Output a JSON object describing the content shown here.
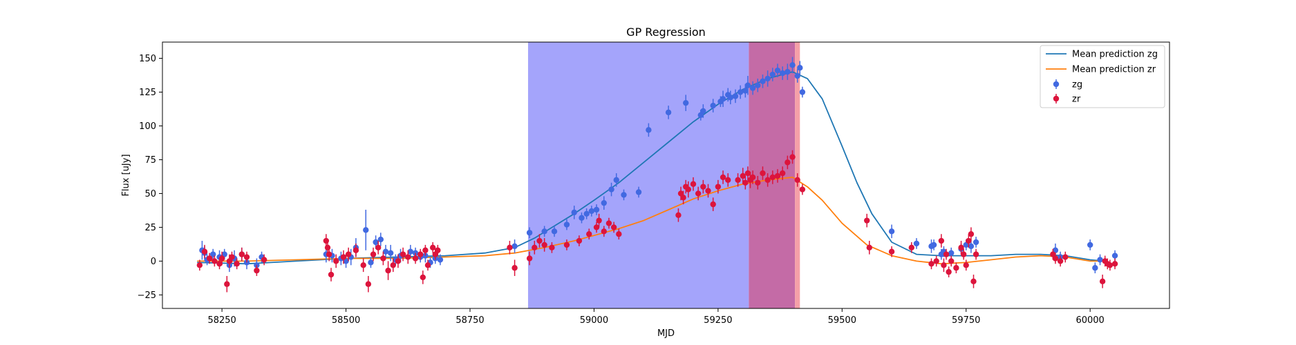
{
  "chart_data": {
    "type": "scatter",
    "title": "GP Regression",
    "xlabel": "MJD",
    "ylabel": "Flux [uJy]",
    "xlim": [
      58130,
      60160
    ],
    "ylim": [
      -35,
      162
    ],
    "x_ticks": [
      58250,
      58500,
      58750,
      59000,
      59250,
      59500,
      59750,
      60000
    ],
    "y_ticks": [
      -25,
      0,
      25,
      50,
      75,
      100,
      125,
      150
    ],
    "grid": false,
    "legend_position": "top-right",
    "shaded_regions": [
      {
        "x_start": 58867,
        "x_end": 59312,
        "color": "#a4a4fb"
      },
      {
        "x_start": 59312,
        "x_end": 59405,
        "color": "#c46ba6"
      },
      {
        "x_start": 59405,
        "x_end": 59415,
        "color": "#f5a0a8"
      }
    ],
    "series": [
      {
        "name": "Mean prediction zg",
        "kind": "line",
        "color": "#1f77b4",
        "x": [
          58200,
          58300,
          58400,
          58500,
          58600,
          58700,
          58780,
          58840,
          58880,
          58920,
          58960,
          59000,
          59050,
          59100,
          59150,
          59200,
          59250,
          59300,
          59350,
          59400,
          59430,
          59460,
          59500,
          59530,
          59560,
          59600,
          59650,
          59700,
          59750,
          59800,
          59850,
          59900,
          59950,
          60000,
          60030
        ],
        "y": [
          -1,
          -2,
          0,
          2,
          3,
          4,
          6,
          10,
          17,
          26,
          35,
          45,
          58,
          73,
          88,
          103,
          116,
          127,
          135,
          140,
          135,
          120,
          85,
          58,
          35,
          14,
          5,
          4,
          4,
          4,
          5,
          5,
          4,
          1,
          0
        ]
      },
      {
        "name": "Mean prediction zr",
        "kind": "line",
        "color": "#ff7f0e",
        "x": [
          58200,
          58300,
          58400,
          58500,
          58600,
          58700,
          58780,
          58840,
          58900,
          58960,
          59000,
          59050,
          59100,
          59150,
          59200,
          59250,
          59300,
          59350,
          59400,
          59430,
          59460,
          59500,
          59550,
          59600,
          59650,
          59700,
          59750,
          59800,
          59850,
          59900,
          59950,
          60000,
          60030
        ],
        "y": [
          0,
          0,
          1,
          2,
          2,
          3,
          4,
          6,
          10,
          15,
          19,
          24,
          30,
          38,
          46,
          52,
          57,
          60,
          62,
          55,
          45,
          28,
          12,
          4,
          0,
          -2,
          -1,
          1,
          3,
          4,
          3,
          0,
          0
        ]
      },
      {
        "name": "zg",
        "kind": "errorbar",
        "color": "#4169e1",
        "x": [
          58210,
          58215,
          58220,
          58232,
          58245,
          58255,
          58265,
          58275,
          58290,
          58300,
          58320,
          58330,
          58460,
          58472,
          58490,
          58500,
          58510,
          58520,
          58540,
          58550,
          58560,
          58570,
          58580,
          58590,
          58600,
          58610,
          58630,
          58640,
          58650,
          58660,
          58670,
          58680,
          58690,
          58840,
          58870,
          58900,
          58920,
          58945,
          58960,
          58975,
          58985,
          58995,
          59005,
          59020,
          59035,
          59045,
          59060,
          59090,
          59110,
          59150,
          59185,
          59215,
          59220,
          59240,
          59255,
          59260,
          59270,
          59275,
          59285,
          59295,
          59305,
          59310,
          59320,
          59330,
          59340,
          59350,
          59360,
          59370,
          59380,
          59390,
          59400,
          59410,
          59415,
          59420,
          59600,
          59650,
          59680,
          59685,
          59700,
          59705,
          59720,
          59740,
          59750,
          59760,
          59770,
          59930,
          59940,
          60000,
          60010,
          60020,
          60050
        ],
        "y": [
          8,
          6,
          1,
          5,
          3,
          5,
          -3,
          2,
          5,
          -1,
          -3,
          3,
          5,
          4,
          2,
          0,
          3,
          10,
          23,
          -1,
          14,
          16,
          7,
          6,
          1,
          4,
          7,
          6,
          3,
          4,
          -1,
          2,
          1,
          11,
          21,
          22,
          22,
          27,
          36,
          32,
          35,
          37,
          38,
          43,
          53,
          60,
          49,
          51,
          97,
          110,
          117,
          108,
          111,
          115,
          118,
          120,
          123,
          121,
          122,
          125,
          126,
          130,
          128,
          130,
          133,
          135,
          138,
          141,
          139,
          140,
          145,
          137,
          143,
          125,
          22,
          13,
          11,
          12,
          5,
          7,
          6,
          9,
          12,
          11,
          14,
          8,
          3,
          12,
          -5,
          1,
          4
        ],
        "yerr": [
          7,
          5,
          4,
          4,
          5,
          4,
          5,
          6,
          5,
          5,
          5,
          4,
          6,
          5,
          5,
          5,
          6,
          7,
          15,
          4,
          5,
          5,
          5,
          6,
          4,
          5,
          5,
          4,
          4,
          5,
          4,
          4,
          4,
          5,
          4,
          4,
          4,
          4,
          5,
          4,
          4,
          4,
          4,
          5,
          5,
          5,
          4,
          4,
          5,
          5,
          6,
          4,
          5,
          5,
          4,
          6,
          5,
          5,
          5,
          5,
          5,
          7,
          5,
          5,
          5,
          6,
          5,
          5,
          5,
          6,
          6,
          5,
          5,
          4,
          5,
          4,
          5,
          4,
          4,
          4,
          4,
          4,
          4,
          5,
          4,
          5,
          4,
          4,
          4,
          4,
          4
        ]
      },
      {
        "name": "zr",
        "kind": "errorbar",
        "color": "#dc143c",
        "x": [
          58205,
          58215,
          58225,
          58235,
          58245,
          58250,
          58260,
          58265,
          58270,
          58280,
          58290,
          58300,
          58320,
          58335,
          58460,
          58463,
          58466,
          58470,
          58480,
          58495,
          58505,
          58520,
          58535,
          58545,
          58555,
          58565,
          58575,
          58585,
          58595,
          58605,
          58615,
          58625,
          58640,
          58650,
          58655,
          58660,
          58665,
          58675,
          58680,
          58685,
          58830,
          58840,
          58870,
          58880,
          58890,
          58900,
          58915,
          58945,
          58970,
          58990,
          59005,
          59010,
          59020,
          59030,
          59040,
          59050,
          59170,
          59175,
          59180,
          59185,
          59190,
          59200,
          59210,
          59220,
          59230,
          59240,
          59250,
          59260,
          59270,
          59290,
          59300,
          59305,
          59310,
          59315,
          59320,
          59330,
          59340,
          59350,
          59360,
          59370,
          59380,
          59390,
          59400,
          59410,
          59420,
          59550,
          59555,
          59600,
          59640,
          59680,
          59690,
          59700,
          59705,
          59710,
          59715,
          59720,
          59730,
          59740,
          59745,
          59750,
          59755,
          59760,
          59765,
          59770,
          59925,
          59930,
          59940,
          59950,
          60025,
          60030,
          60035,
          60040,
          60050
        ],
        "y": [
          -3,
          7,
          2,
          0,
          -2,
          2,
          -17,
          0,
          3,
          -2,
          5,
          3,
          -7,
          1,
          15,
          10,
          5,
          -10,
          0,
          3,
          5,
          8,
          -3,
          -17,
          5,
          10,
          2,
          -7,
          -3,
          0,
          5,
          3,
          2,
          5,
          -12,
          8,
          -3,
          10,
          5,
          8,
          10,
          -5,
          2,
          10,
          15,
          12,
          10,
          12,
          15,
          20,
          25,
          30,
          22,
          28,
          25,
          20,
          34,
          50,
          47,
          55,
          53,
          57,
          50,
          55,
          52,
          42,
          55,
          62,
          60,
          60,
          63,
          58,
          65,
          60,
          62,
          58,
          65,
          60,
          62,
          63,
          65,
          73,
          77,
          60,
          53,
          30,
          10,
          7,
          10,
          -2,
          0,
          15,
          -3,
          5,
          -8,
          0,
          -5,
          10,
          5,
          -3,
          15,
          20,
          -15,
          5,
          5,
          2,
          0,
          3,
          -15,
          0,
          -2,
          -3,
          -2
        ],
        "yerr": [
          4,
          5,
          4,
          4,
          4,
          5,
          6,
          5,
          4,
          4,
          5,
          4,
          4,
          4,
          5,
          5,
          5,
          5,
          5,
          5,
          5,
          5,
          5,
          6,
          5,
          5,
          5,
          7,
          5,
          5,
          5,
          5,
          4,
          4,
          5,
          4,
          4,
          4,
          4,
          4,
          5,
          6,
          5,
          5,
          5,
          5,
          4,
          4,
          4,
          4,
          4,
          5,
          4,
          4,
          4,
          4,
          5,
          5,
          5,
          5,
          6,
          5,
          5,
          5,
          5,
          5,
          5,
          5,
          5,
          5,
          6,
          5,
          5,
          6,
          5,
          5,
          5,
          5,
          5,
          5,
          5,
          5,
          5,
          5,
          4,
          5,
          5,
          4,
          4,
          4,
          4,
          5,
          5,
          4,
          4,
          4,
          4,
          5,
          4,
          4,
          5,
          5,
          5,
          4,
          4,
          4,
          4,
          4,
          5,
          4,
          4,
          4,
          4
        ]
      }
    ]
  }
}
